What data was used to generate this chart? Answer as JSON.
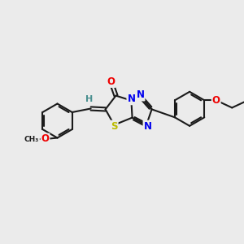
{
  "bg_color": "#ebebeb",
  "bond_color": "#1a1a1a",
  "bond_width": 1.5,
  "atom_colors": {
    "N": "#0000ee",
    "O": "#ee0000",
    "S": "#bbbb00",
    "H": "#4a9090",
    "C": "#1a1a1a"
  },
  "font_size": 8.5,
  "fig_size": [
    3.0,
    3.0
  ],
  "dpi": 100,
  "xlim": [
    0,
    10
  ],
  "ylim": [
    0,
    10
  ]
}
